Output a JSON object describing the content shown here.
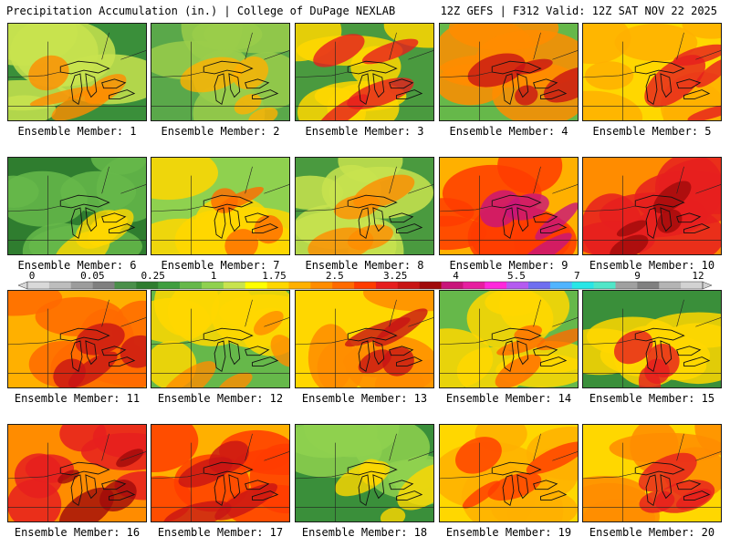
{
  "header": {
    "left": "Precipitation Accumulation (in.) | College of DuPage NEXLAB",
    "right": "12Z GEFS | F312 Valid: 12Z SAT NOV 22 2025"
  },
  "colorbar": {
    "tick_labels": [
      "0",
      "0.05",
      "0.25",
      "1",
      "1.75",
      "2.5",
      "3.25",
      "4",
      "5.5",
      "7",
      "9",
      "12"
    ],
    "colors": [
      "#d9d9d9",
      "#bdbdbd",
      "#9c9c9c",
      "#7f7f7f",
      "#4a8f4a",
      "#2f7d2f",
      "#3f9e3f",
      "#66b84a",
      "#8fd14f",
      "#c8e34f",
      "#ffff00",
      "#ffd700",
      "#ffb000",
      "#ff8c00",
      "#ff6a00",
      "#ff3c00",
      "#e61e1e",
      "#c81414",
      "#a00a0a",
      "#c8147a",
      "#e61ea0",
      "#ff28dc",
      "#b45af0",
      "#6e6ef0",
      "#50b4ff",
      "#28e6e6",
      "#50e6c8",
      "#a0a0a0",
      "#808080",
      "#b4b4b4",
      "#d2d2d2"
    ]
  },
  "panels": [
    {
      "label": "Ensemble Member: 1"
    },
    {
      "label": "Ensemble Member: 2"
    },
    {
      "label": "Ensemble Member: 3"
    },
    {
      "label": "Ensemble Member: 4"
    },
    {
      "label": "Ensemble Member: 5"
    },
    {
      "label": "Ensemble Member: 6"
    },
    {
      "label": "Ensemble Member: 7"
    },
    {
      "label": "Ensemble Member: 8"
    },
    {
      "label": "Ensemble Member: 9"
    },
    {
      "label": "Ensemble Member: 10"
    },
    {
      "label": "Ensemble Member: 11"
    },
    {
      "label": "Ensemble Member: 12"
    },
    {
      "label": "Ensemble Member: 13"
    },
    {
      "label": "Ensemble Member: 14"
    },
    {
      "label": "Ensemble Member: 15"
    },
    {
      "label": "Ensemble Member: 16"
    },
    {
      "label": "Ensemble Member: 17"
    },
    {
      "label": "Ensemble Member: 18"
    },
    {
      "label": "Ensemble Member: 19"
    },
    {
      "label": "Ensemble Member: 20"
    }
  ]
}
